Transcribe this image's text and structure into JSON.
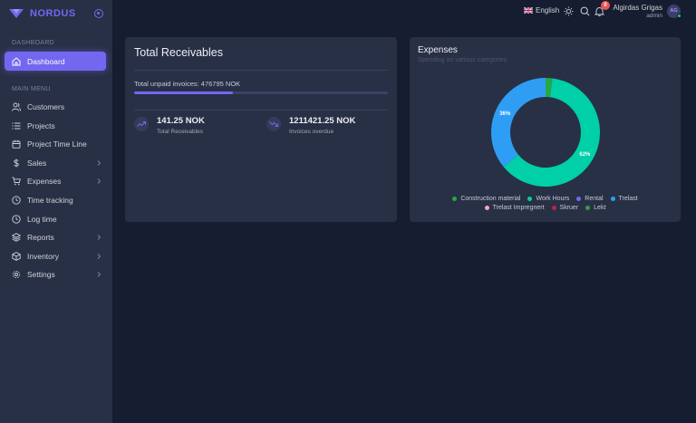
{
  "brand": {
    "name": "NORDUS",
    "logo_color": "#7367f0"
  },
  "sidebar": {
    "section_dashboard": "DASHBOARD",
    "active_item": {
      "label": "Dashboard",
      "icon": "home-icon"
    },
    "section_main": "MAIN MENU",
    "items": [
      {
        "label": "Customers",
        "icon": "users-icon",
        "has_submenu": false
      },
      {
        "label": "Projects",
        "icon": "list-icon",
        "has_submenu": false
      },
      {
        "label": "Project Time Line",
        "icon": "calendar-icon",
        "has_submenu": false
      },
      {
        "label": "Sales",
        "icon": "dollar-icon",
        "has_submenu": true
      },
      {
        "label": "Expenses",
        "icon": "cart-icon",
        "has_submenu": true
      },
      {
        "label": "Time tracking",
        "icon": "clock-icon",
        "has_submenu": false
      },
      {
        "label": "Log time",
        "icon": "clock-icon",
        "has_submenu": false
      },
      {
        "label": "Reports",
        "icon": "layers-icon",
        "has_submenu": true
      },
      {
        "label": "Inventory",
        "icon": "box-icon",
        "has_submenu": true
      },
      {
        "label": "Settings",
        "icon": "settings-icon",
        "has_submenu": true
      }
    ]
  },
  "topbar": {
    "language": "English",
    "notification_count": "0",
    "user_name": "Algirdas Grigas",
    "user_role": "admin",
    "avatar_initials": "AG"
  },
  "receivables": {
    "title": "Total Receivables",
    "unpaid_text": "Total unpaid invoices: 476795 NOK",
    "progress_percent": 39,
    "stat1_value": "141.25 NOK",
    "stat1_label": "Total Receivables",
    "stat2_value": "1211421.25 NOK",
    "stat2_label": "Invoices overdue"
  },
  "expenses": {
    "title": "Expenses",
    "subtitle": "Spending on various categories"
  },
  "chart_data": {
    "type": "pie",
    "subtype": "donut",
    "categories": [
      "Construction material",
      "Work Hours",
      "Rental",
      "Trelast",
      "Trelast Impregnert",
      "Skruer",
      "Lekt"
    ],
    "values": [
      2,
      62,
      0,
      36,
      0,
      0,
      0
    ],
    "data_labels": [
      "",
      "62%",
      "",
      "36%",
      "",
      "",
      ""
    ],
    "colors": [
      "#28a745",
      "#00cfa8",
      "#7367f0",
      "#2e9ef4",
      "#f8a5b5",
      "#c0253a",
      "#3a9b3a"
    ],
    "legend_position": "bottom"
  }
}
